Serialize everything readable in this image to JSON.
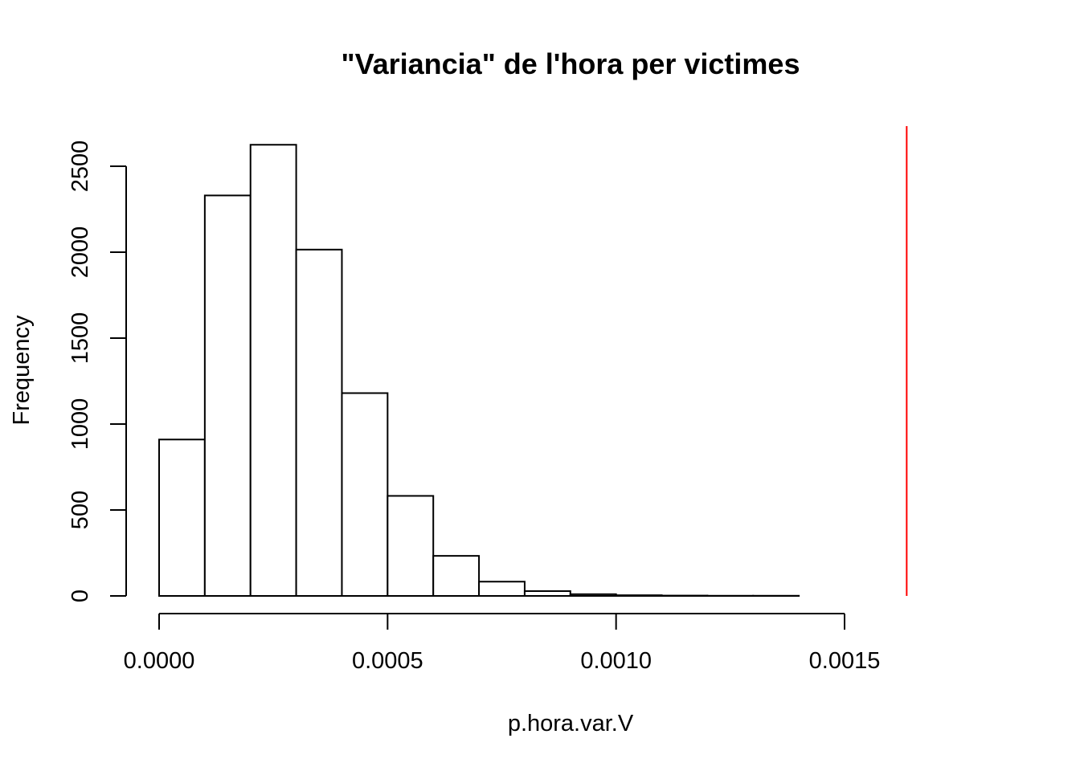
{
  "chart_data": {
    "type": "bar",
    "title": "\"Variancia\" de l'hora per victimes",
    "xlabel": "p.hora.var.V",
    "ylabel": "Frequency",
    "bin_edges": [
      0.0,
      0.0001,
      0.0002,
      0.0003,
      0.0004,
      0.0005,
      0.0006,
      0.0007,
      0.0008,
      0.0009,
      0.001,
      0.0011,
      0.0012,
      0.0013,
      0.0014
    ],
    "values": [
      910,
      2330,
      2625,
      2015,
      1180,
      582,
      233,
      83,
      28,
      10,
      4,
      2,
      1,
      1
    ],
    "x_ticks": [
      0.0,
      0.0005,
      0.001,
      0.0015
    ],
    "x_tick_labels": [
      "0.0000",
      "0.0005",
      "0.0010",
      "0.0015"
    ],
    "y_ticks": [
      0,
      500,
      1000,
      1500,
      2000,
      2500
    ],
    "y_tick_labels": [
      "0",
      "500",
      "1000",
      "1500",
      "2000",
      "2500"
    ],
    "xlim": [
      0.0,
      0.0015
    ],
    "ylim": [
      0,
      2500
    ],
    "reference_line": {
      "x": 0.001636,
      "color": "#ff0000"
    },
    "grid": false,
    "bar_fill": "#ffffff",
    "bar_stroke": "#000000"
  }
}
